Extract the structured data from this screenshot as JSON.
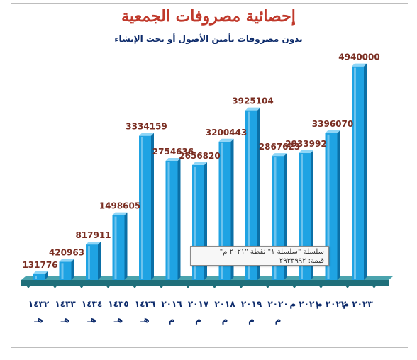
{
  "title": "إحصائية مصروفات الجمعية",
  "subtitle": "بدون مصروفات تأمين الأصول أو تحت الإنشاء",
  "chart_data": {
    "type": "bar",
    "categories": [
      [
        "١٤٣٢",
        "هـ"
      ],
      [
        "١٤٣٣",
        "هـ"
      ],
      [
        "١٤٣٤",
        "هـ"
      ],
      [
        "١٤٣٥",
        "هـ"
      ],
      [
        "١٤٣٦",
        "هـ"
      ],
      [
        "٢٠١٦",
        "م"
      ],
      [
        "٢٠١٧",
        "م"
      ],
      [
        "٢٠١٨",
        "م"
      ],
      [
        "٢٠١٩",
        "م"
      ],
      [
        "٢٠٢٠",
        "م"
      ],
      [
        "٢٠٢١ م"
      ],
      [
        "٢٠٢٢ م"
      ],
      [
        "٢٠٢٣ م"
      ]
    ],
    "values": [
      131776,
      420963,
      817911,
      1498605,
      3334159,
      2754636,
      2656820,
      3200443,
      3925104,
      2867623,
      2933992,
      3396070,
      4940000
    ],
    "value_labels": [
      "131776",
      "420963",
      "817911",
      "1498605",
      "3334159",
      "2754636",
      "2656820",
      "3200443",
      "3925104",
      "2867623",
      "2933992",
      "3396070",
      "4940000"
    ],
    "ylim": [
      0,
      5000000
    ],
    "grid": false,
    "colors": {
      "bar_front": "#1fa3e3",
      "bar_side": "#0b6fa6",
      "bar_top": "#8fd6f7",
      "floor": "#1f6f7a"
    }
  },
  "tooltip": {
    "line1": "سلسلة \"سلسلة ١\" نقطة \"٢٠٢١ م\"",
    "line2": "قيمة: ٢٩٣٣٩٩٢"
  }
}
